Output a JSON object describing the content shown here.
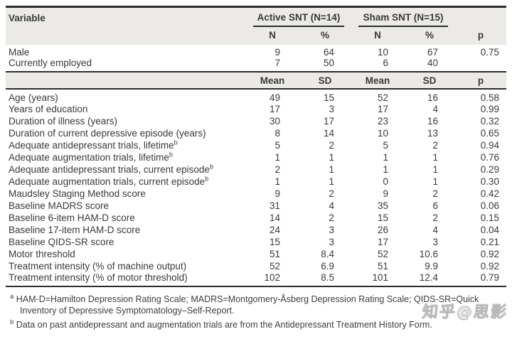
{
  "table": {
    "variable_header": "Variable",
    "groups": [
      {
        "label": "Active SNT (N=14)"
      },
      {
        "label": "Sham SNT (N=15)"
      }
    ],
    "count_header": {
      "c1": "N",
      "c2": "%",
      "c3": "N",
      "c4": "%",
      "p": "p"
    },
    "mean_header": {
      "c1": "Mean",
      "c2": "SD",
      "c3": "Mean",
      "c4": "SD",
      "p": "p"
    },
    "count_rows": [
      {
        "label": "Male",
        "sup": "",
        "values": [
          "9",
          "64",
          "10",
          "67"
        ],
        "p": "0.75"
      },
      {
        "label": "Currently employed",
        "sup": "",
        "values": [
          "7",
          "50",
          "6",
          "40"
        ],
        "p": ""
      }
    ],
    "mean_rows": [
      {
        "label": "Age (years)",
        "sup": "",
        "values": [
          "49",
          "15",
          "52",
          "16"
        ],
        "p": "0.58"
      },
      {
        "label": "Years of education",
        "sup": "",
        "values": [
          "17",
          "3",
          "17",
          "4"
        ],
        "p": "0.99"
      },
      {
        "label": "Duration of illness (years)",
        "sup": "",
        "values": [
          "30",
          "17",
          "23",
          "16"
        ],
        "p": "0.32"
      },
      {
        "label": "Duration of current depressive episode (years)",
        "sup": "",
        "values": [
          "8",
          "14",
          "10",
          "13"
        ],
        "p": "0.65"
      },
      {
        "label": "Adequate antidepressant trials, lifetime",
        "sup": "b",
        "values": [
          "5",
          "2",
          "5",
          "2"
        ],
        "p": "0.94"
      },
      {
        "label": "Adequate augmentation trials, lifetime",
        "sup": "b",
        "values": [
          "1",
          "1",
          "1",
          "1"
        ],
        "p": "0.76"
      },
      {
        "label": "Adequate antidepressant trials, current episode",
        "sup": "b",
        "values": [
          "2",
          "1",
          "1",
          "1"
        ],
        "p": "0.29"
      },
      {
        "label": "Adequate augmentation trials, current episode",
        "sup": "b",
        "values": [
          "1",
          "1",
          "0",
          "1"
        ],
        "p": "0.30"
      },
      {
        "label": "Maudsley Staging Method score",
        "sup": "",
        "values": [
          "9",
          "2",
          "9",
          "2"
        ],
        "p": "0.42"
      },
      {
        "label": "Baseline MADRS score",
        "sup": "",
        "values": [
          "31",
          "4",
          "35",
          "6"
        ],
        "p": "0.06"
      },
      {
        "label": "Baseline 6-item HAM-D score",
        "sup": "",
        "values": [
          "14",
          "2",
          "15",
          "2"
        ],
        "p": "0.15"
      },
      {
        "label": "Baseline 17-item HAM-D score",
        "sup": "",
        "values": [
          "24",
          "3",
          "26",
          "4"
        ],
        "p": "0.04"
      },
      {
        "label": "Baseline QIDS-SR score",
        "sup": "",
        "values": [
          "15",
          "3",
          "17",
          "3"
        ],
        "p": "0.21"
      },
      {
        "label": "Motor threshold",
        "sup": "",
        "values": [
          "51",
          "8.4",
          "52",
          "10.6"
        ],
        "p": "0.92"
      },
      {
        "label": "Treatment intensity (% of machine output)",
        "sup": "",
        "values": [
          "52",
          "6.9",
          "51",
          "9.9"
        ],
        "p": "0.92"
      },
      {
        "label": "Treatment intensity (% of motor threshold)",
        "sup": "",
        "values": [
          "102",
          "8.5",
          "101",
          "12.4"
        ],
        "p": "0.79"
      }
    ]
  },
  "footnotes": [
    {
      "marker": "a",
      "text": "HAM-D=Hamilton Depression Rating Scale; MADRS=Montgomery-Åsberg Depression Rating Scale; QIDS-SR=Quick Inventory of Depressive Symptomatology–Self-Report."
    },
    {
      "marker": "b",
      "text": "Data on past antidepressant and augmentation trials are from the Antidepressant Treatment History Form."
    }
  ],
  "watermark": "知乎@思影",
  "colors": {
    "header_band_bg": "#ebeae6",
    "border_dark": "#2d2d2b",
    "text": "#3a3a38",
    "page_bg": "#ffffff"
  }
}
